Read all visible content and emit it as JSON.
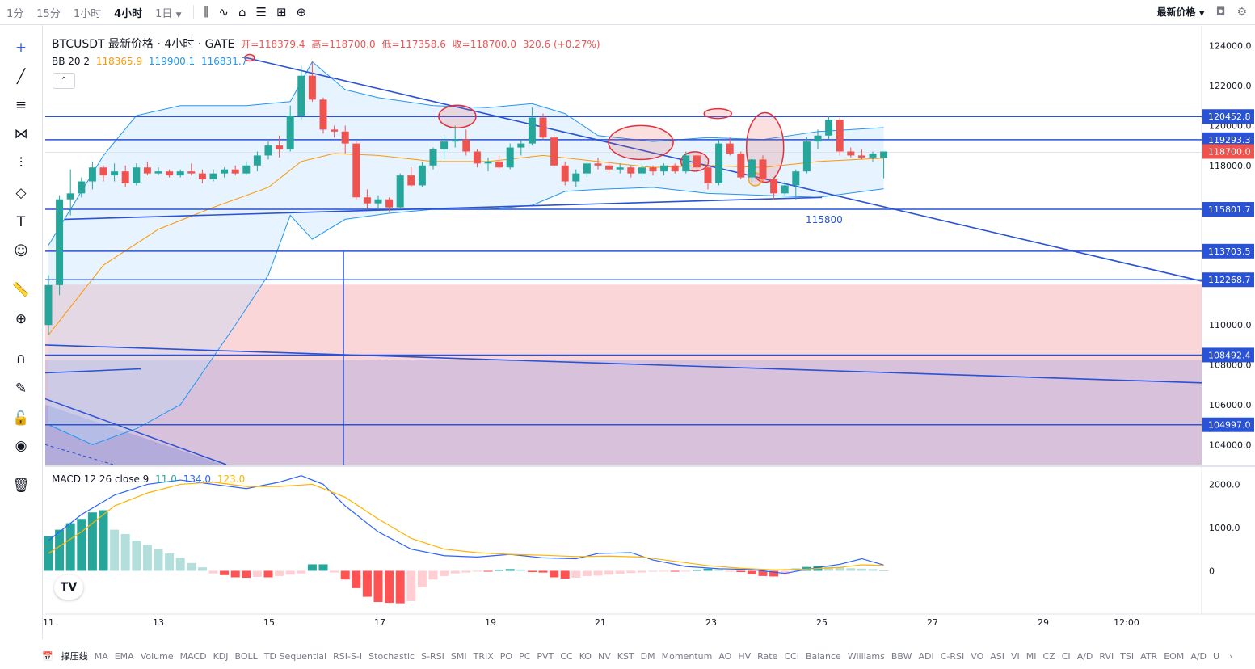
{
  "toolbar": {
    "intervals": [
      "1分",
      "15分",
      "1小时",
      "4小时",
      "1日"
    ],
    "active_interval": "4小时",
    "price_mode": "最新价格"
  },
  "legend": {
    "symbol_line": "BTCUSDT 最新价格 · 4小时 · GATE",
    "open": "开=118379.4",
    "high": "高=118700.0",
    "low": "低=117358.6",
    "close": "收=118700.0",
    "change": "320.6 (+0.27%)",
    "bb_label": "BB 20 2",
    "bb_basis": "118365.9",
    "bb_upper": "119900.1",
    "bb_lower": "116831.7",
    "macd_label": "MACD 12 26 close 9",
    "macd_hist": "11.0",
    "macd_line": "134.0",
    "macd_signal": "123.0"
  },
  "colors": {
    "up": "#26a69a",
    "down": "#ef5350",
    "bb_basis": "#ff9800",
    "bb_bands": "#2196f3",
    "drawing": "#2952d6",
    "zone": "#f8c8cc",
    "macd_line": "#2962ff",
    "signal_line": "#ffb300"
  },
  "chart_data": {
    "type": "candlestick",
    "y_range": [
      103000,
      125000
    ],
    "y_ticks": [
      "124000.0",
      "122000.0",
      "120000.0",
      "118000.0",
      "116000.0",
      "110000.0",
      "108000.0",
      "106000.0",
      "104000.0"
    ],
    "price_labels": [
      {
        "text": "120452.8",
        "value": 120452.8,
        "kind": "line"
      },
      {
        "text": "119293.3",
        "value": 119293.3,
        "kind": "line"
      },
      {
        "text": "118700.0",
        "value": 118700.0,
        "kind": "current"
      },
      {
        "text": "115801.7",
        "value": 115801.7,
        "kind": "line"
      },
      {
        "text": "113703.5",
        "value": 113703.5,
        "kind": "line"
      },
      {
        "text": "112268.7",
        "value": 112268.7,
        "kind": "line"
      },
      {
        "text": "108492.4",
        "value": 108492.4,
        "kind": "line"
      },
      {
        "text": "104997.0",
        "value": 104997.0,
        "kind": "line"
      }
    ],
    "annotation": "115800",
    "x_labels": [
      "11",
      "13",
      "15",
      "17",
      "19",
      "21",
      "23",
      "25",
      "27",
      "29",
      "12:00"
    ],
    "candles": [
      [
        110000,
        112500,
        109500,
        112000
      ],
      [
        112000,
        116500,
        111500,
        116300
      ],
      [
        116300,
        117800,
        115500,
        116600
      ],
      [
        116600,
        117400,
        116400,
        117200
      ],
      [
        117200,
        118200,
        116800,
        117900
      ],
      [
        117900,
        118000,
        117200,
        117500
      ],
      [
        117500,
        118100,
        117200,
        117700
      ],
      [
        117700,
        118000,
        116900,
        117100
      ],
      [
        117100,
        118100,
        117000,
        117900
      ],
      [
        117900,
        118200,
        117500,
        117600
      ],
      [
        117600,
        117900,
        117500,
        117700
      ],
      [
        117700,
        117800,
        117400,
        117500
      ],
      [
        117500,
        117800,
        117400,
        117700
      ],
      [
        117700,
        118100,
        117500,
        117600
      ],
      [
        117600,
        117800,
        117100,
        117300
      ],
      [
        117300,
        117800,
        117200,
        117600
      ],
      [
        117600,
        117900,
        117400,
        117800
      ],
      [
        117800,
        118000,
        117500,
        117600
      ],
      [
        117600,
        118200,
        117500,
        118000
      ],
      [
        118000,
        118700,
        117700,
        118500
      ],
      [
        118500,
        119200,
        118300,
        119000
      ],
      [
        119000,
        119500,
        118400,
        118800
      ],
      [
        118800,
        121000,
        118700,
        120500
      ],
      [
        120500,
        123000,
        120300,
        122500
      ],
      [
        122500,
        123200,
        121200,
        121300
      ],
      [
        121300,
        121400,
        119600,
        119800
      ],
      [
        119800,
        120000,
        119400,
        119700
      ],
      [
        119700,
        120000,
        118600,
        119100
      ],
      [
        119100,
        119200,
        116300,
        116400
      ],
      [
        116400,
        116800,
        115800,
        116100
      ],
      [
        116100,
        116500,
        115800,
        116300
      ],
      [
        116300,
        116400,
        115700,
        115900
      ],
      [
        115900,
        117600,
        115800,
        117500
      ],
      [
        117500,
        117900,
        116900,
        117000
      ],
      [
        117000,
        118200,
        116900,
        118000
      ],
      [
        118000,
        118900,
        117800,
        118800
      ],
      [
        118800,
        119500,
        118300,
        119200
      ],
      [
        119200,
        120000,
        118900,
        119300
      ],
      [
        119300,
        119800,
        118500,
        118700
      ],
      [
        118700,
        118800,
        117900,
        118100
      ],
      [
        118100,
        118400,
        117700,
        118200
      ],
      [
        118200,
        118500,
        117800,
        117900
      ],
      [
        117900,
        119100,
        117800,
        118900
      ],
      [
        118900,
        119300,
        118500,
        119100
      ],
      [
        119100,
        120900,
        119000,
        120400
      ],
      [
        120400,
        120600,
        119300,
        119400
      ],
      [
        119400,
        119500,
        117900,
        118000
      ],
      [
        118000,
        118200,
        117000,
        117200
      ],
      [
        117200,
        117800,
        116900,
        117600
      ],
      [
        117600,
        118200,
        117400,
        118100
      ],
      [
        118100,
        118400,
        117800,
        118000
      ],
      [
        118000,
        118200,
        117600,
        117800
      ],
      [
        117800,
        118100,
        117600,
        117900
      ],
      [
        117900,
        118000,
        117400,
        117600
      ],
      [
        117600,
        118100,
        117300,
        117900
      ],
      [
        117900,
        118000,
        117500,
        117700
      ],
      [
        117700,
        118100,
        117500,
        118000
      ],
      [
        118000,
        118100,
        117600,
        117700
      ],
      [
        117700,
        118700,
        117600,
        118500
      ],
      [
        118500,
        118600,
        117800,
        117900
      ],
      [
        117900,
        118200,
        116800,
        117100
      ],
      [
        117100,
        119300,
        117000,
        119100
      ],
      [
        119100,
        119400,
        118500,
        118600
      ],
      [
        118600,
        118700,
        117300,
        117400
      ],
      [
        117400,
        118400,
        117200,
        118300
      ],
      [
        118300,
        118500,
        117100,
        117300
      ],
      [
        117300,
        117400,
        116300,
        116600
      ],
      [
        116600,
        117200,
        116500,
        117000
      ],
      [
        117000,
        117800,
        116300,
        117700
      ],
      [
        117700,
        119400,
        117600,
        119200
      ],
      [
        119200,
        119800,
        118800,
        119500
      ],
      [
        119500,
        120500,
        119300,
        120300
      ],
      [
        120300,
        120400,
        118500,
        118700
      ],
      [
        118700,
        118900,
        118400,
        118500
      ],
      [
        118500,
        118800,
        118300,
        118400
      ],
      [
        118400,
        118700,
        118200,
        118600
      ],
      [
        118379.4,
        118700,
        117358.6,
        118700
      ]
    ],
    "bb_basis": [
      [
        0,
        109500
      ],
      [
        5,
        113000
      ],
      [
        10,
        114800
      ],
      [
        15,
        115900
      ],
      [
        20,
        116900
      ],
      [
        23,
        118200
      ],
      [
        26,
        118600
      ],
      [
        30,
        118500
      ],
      [
        35,
        118200
      ],
      [
        40,
        118200
      ],
      [
        45,
        118500
      ],
      [
        50,
        118200
      ],
      [
        55,
        117900
      ],
      [
        60,
        118000
      ],
      [
        65,
        117900
      ],
      [
        70,
        118200
      ],
      [
        76,
        118365.9
      ]
    ],
    "bb_upper": [
      [
        0,
        114000
      ],
      [
        5,
        118500
      ],
      [
        8,
        120500
      ],
      [
        12,
        121000
      ],
      [
        18,
        121000
      ],
      [
        22,
        121200
      ],
      [
        24,
        123200
      ],
      [
        27,
        121800
      ],
      [
        30,
        121400
      ],
      [
        35,
        121000
      ],
      [
        40,
        120900
      ],
      [
        44,
        121100
      ],
      [
        47,
        120600
      ],
      [
        50,
        119500
      ],
      [
        55,
        119200
      ],
      [
        60,
        119400
      ],
      [
        65,
        119300
      ],
      [
        70,
        119700
      ],
      [
        76,
        119900.1
      ]
    ],
    "bb_lower": [
      [
        0,
        105000
      ],
      [
        4,
        104000
      ],
      [
        8,
        104800
      ],
      [
        12,
        106000
      ],
      [
        17,
        110000
      ],
      [
        20,
        112500
      ],
      [
        22,
        115500
      ],
      [
        24,
        114300
      ],
      [
        27,
        115300
      ],
      [
        31,
        115600
      ],
      [
        35,
        115800
      ],
      [
        40,
        115800
      ],
      [
        44,
        116000
      ],
      [
        47,
        116700
      ],
      [
        50,
        116800
      ],
      [
        55,
        116900
      ],
      [
        60,
        116600
      ],
      [
        65,
        116500
      ],
      [
        70,
        116400
      ],
      [
        76,
        116831.7
      ]
    ],
    "macd": {
      "y_range": [
        -1000,
        2400
      ],
      "y_ticks": [
        "2000.0",
        "1000.0",
        "0"
      ],
      "hist": [
        800,
        950,
        1100,
        1200,
        1350,
        1400,
        950,
        850,
        700,
        600,
        500,
        400,
        300,
        180,
        80,
        -60,
        -100,
        -150,
        -160,
        -140,
        -150,
        -120,
        -90,
        -60,
        150,
        150,
        -40,
        -200,
        -400,
        -600,
        -720,
        -740,
        -750,
        -700,
        -380,
        -200,
        -120,
        -60,
        -40,
        -20,
        -20,
        20,
        40,
        30,
        -30,
        -40,
        -150,
        -180,
        -160,
        -120,
        -110,
        -90,
        -70,
        -50,
        -40,
        -20,
        -10,
        -20,
        -10,
        20,
        50,
        40,
        -20,
        -30,
        -80,
        -120,
        -130,
        -90,
        60,
        90,
        120,
        100,
        80,
        60,
        50,
        40,
        11
      ],
      "macd_line": [
        [
          0,
          700
        ],
        [
          3,
          1300
        ],
        [
          6,
          1750
        ],
        [
          9,
          2000
        ],
        [
          12,
          2100
        ],
        [
          15,
          2000
        ],
        [
          18,
          1900
        ],
        [
          21,
          2050
        ],
        [
          23,
          2200
        ],
        [
          25,
          2000
        ],
        [
          27,
          1500
        ],
        [
          30,
          900
        ],
        [
          33,
          500
        ],
        [
          36,
          350
        ],
        [
          39,
          320
        ],
        [
          42,
          380
        ],
        [
          45,
          300
        ],
        [
          48,
          280
        ],
        [
          50,
          400
        ],
        [
          53,
          420
        ],
        [
          55,
          250
        ],
        [
          58,
          100
        ],
        [
          61,
          50
        ],
        [
          64,
          30
        ],
        [
          67,
          -60
        ],
        [
          70,
          80
        ],
        [
          72,
          150
        ],
        [
          74,
          280
        ],
        [
          76,
          134
        ]
      ],
      "signal_line": [
        [
          0,
          400
        ],
        [
          3,
          900
        ],
        [
          6,
          1500
        ],
        [
          9,
          1800
        ],
        [
          12,
          2000
        ],
        [
          15,
          2050
        ],
        [
          18,
          1950
        ],
        [
          21,
          1950
        ],
        [
          24,
          2000
        ],
        [
          27,
          1700
        ],
        [
          30,
          1200
        ],
        [
          33,
          750
        ],
        [
          36,
          500
        ],
        [
          39,
          420
        ],
        [
          42,
          380
        ],
        [
          45,
          360
        ],
        [
          48,
          330
        ],
        [
          51,
          340
        ],
        [
          54,
          320
        ],
        [
          57,
          220
        ],
        [
          60,
          120
        ],
        [
          63,
          60
        ],
        [
          66,
          20
        ],
        [
          69,
          40
        ],
        [
          72,
          80
        ],
        [
          74,
          140
        ],
        [
          76,
          123
        ]
      ]
    }
  },
  "bottom_indicators": [
    "撑压线",
    "MA",
    "EMA",
    "Volume",
    "MACD",
    "KDJ",
    "BOLL",
    "TD Sequential",
    "RSI-S-I",
    "Stochastic",
    "S-RSI",
    "SMI",
    "TRIX",
    "PO",
    "PC",
    "PVT",
    "CC",
    "KO",
    "NV",
    "KST",
    "DM",
    "Momentum",
    "AO",
    "HV",
    "Rate",
    "CCI",
    "Balance",
    "Williams",
    "BBW",
    "ADI",
    "C-RSI",
    "VO",
    "ASI",
    "VI",
    "MI",
    "CZ",
    "CI",
    "A/D",
    "RVI",
    "TSI",
    "ATR",
    "EOM",
    "A/D",
    "U"
  ],
  "icons": {
    "left_tools": [
      "crosshair-icon",
      "trendline-icon",
      "fib-icon",
      "pattern-icon",
      "projection-icon",
      "brush-icon",
      "text-icon",
      "emoji-icon",
      "ruler-icon",
      "zoom-icon",
      "magnet-icon",
      "lock-draw-icon",
      "lock-icon",
      "eye-icon",
      "trash-icon"
    ],
    "tv_logo": "TV"
  }
}
